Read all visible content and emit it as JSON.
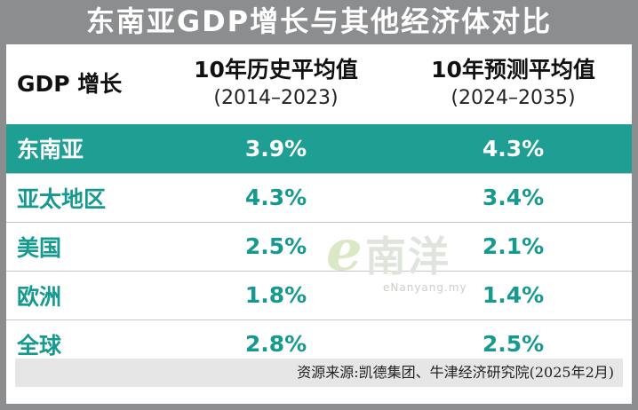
{
  "title": "东南亚GDP增长与其他经济体对比",
  "table": {
    "header": {
      "col0": "GDP 增长",
      "col1_title": "10年历史平均值",
      "col1_range": "(2014–2023)",
      "col2_title": "10年预测平均值",
      "col2_range": "(2024–2035)"
    },
    "rows": [
      {
        "region": "东南亚",
        "hist": "3.9%",
        "forecast": "4.3%"
      },
      {
        "region": "亚太地区",
        "hist": "4.3%",
        "forecast": "3.4%"
      },
      {
        "region": "美国",
        "hist": "2.5%",
        "forecast": "2.1%"
      },
      {
        "region": "欧洲",
        "hist": "1.8%",
        "forecast": "1.4%"
      },
      {
        "region": "全球",
        "hist": "2.8%",
        "forecast": "2.5%"
      }
    ]
  },
  "source": "资源来源:凯德集团、牛津经济研究院(2025年2月)",
  "watermark": {
    "logo_e": "e",
    "logo_cn": "南洋",
    "url": "eNanyang.my"
  },
  "colors": {
    "accent": "#1f9e93",
    "text_teal": "#16998f",
    "background": "#8c8d8f"
  },
  "chart_data": {
    "type": "table",
    "title": "东南亚GDP增长与其他经济体对比",
    "columns": [
      "GDP 增长",
      "10年历史平均值 (2014–2023)",
      "10年预测平均值 (2024–2035)"
    ],
    "rows": [
      [
        "东南亚",
        3.9,
        4.3
      ],
      [
        "亚太地区",
        4.3,
        3.4
      ],
      [
        "美国",
        2.5,
        2.1
      ],
      [
        "欧洲",
        1.8,
        1.4
      ],
      [
        "全球",
        2.8,
        2.5
      ]
    ],
    "unit": "%",
    "highlight_row": "东南亚"
  }
}
